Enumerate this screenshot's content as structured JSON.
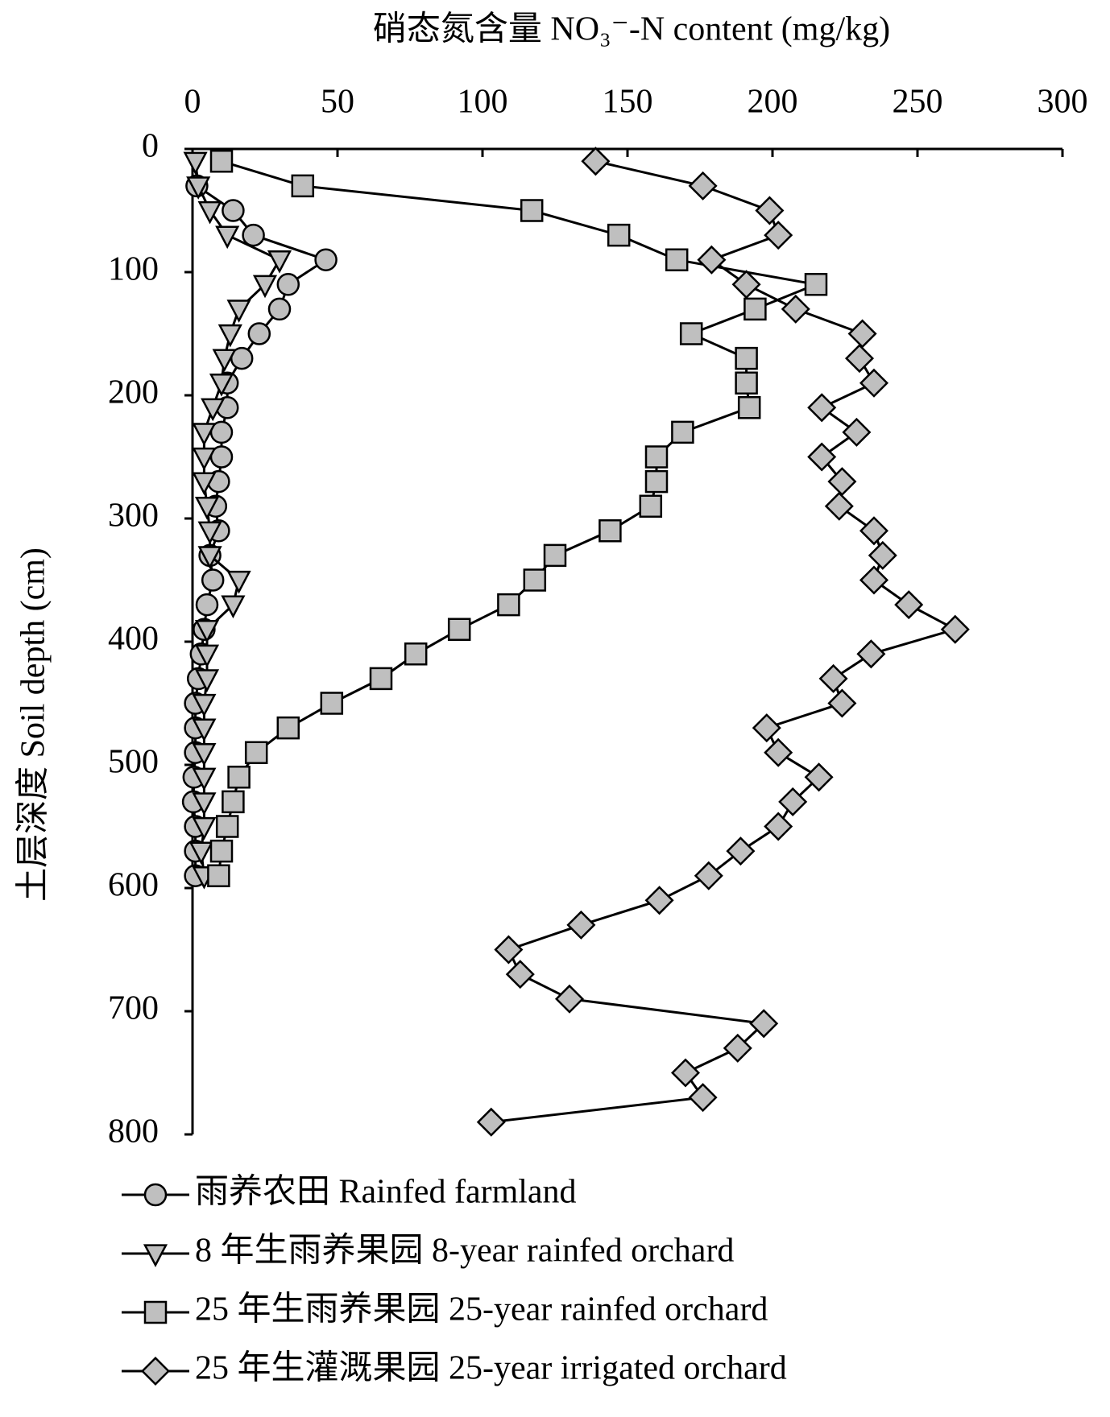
{
  "chart_data": {
    "type": "line",
    "title": "硝态氮含量 NO₃⁻-N content (mg/kg)",
    "y_label": "土层深度 Soil depth (cm)",
    "xlim": [
      0,
      300
    ],
    "xticks": [
      0,
      50,
      100,
      150,
      200,
      250,
      300
    ],
    "ylim": [
      0,
      800
    ],
    "yticks": [
      0,
      100,
      200,
      300,
      400,
      500,
      600,
      700,
      800
    ],
    "y_reversed": true,
    "x_axis_position": "top",
    "series": [
      {
        "name": "雨养农田 Rainfed farmland",
        "marker": "circle",
        "color": "#bfbfbf",
        "depth": [
          30,
          50,
          70,
          90,
          110,
          130,
          150,
          170,
          190,
          210,
          230,
          250,
          270,
          290,
          310,
          330,
          350,
          370,
          390,
          410,
          430,
          450,
          470,
          490,
          510,
          530,
          550,
          570,
          590
        ],
        "values": [
          1.5,
          14,
          21,
          46,
          33,
          30,
          23,
          17,
          12,
          12,
          10,
          10,
          9,
          8,
          9,
          6,
          7,
          5,
          4,
          3,
          2,
          1,
          1,
          1,
          0.5,
          0.3,
          1,
          1,
          1
        ]
      },
      {
        "name": "8 年生雨养果园 8-year rainfed orchard",
        "marker": "triangle-down",
        "color": "#bfbfbf",
        "depth": [
          10,
          30,
          50,
          70,
          90,
          110,
          130,
          150,
          170,
          190,
          210,
          230,
          250,
          270,
          290,
          310,
          330,
          350,
          370,
          390,
          410,
          430,
          450,
          470,
          490,
          510,
          530,
          550,
          570,
          590
        ],
        "values": [
          1,
          2,
          6,
          12,
          30,
          25,
          16,
          13,
          11,
          10,
          7,
          4,
          4,
          4,
          5,
          6,
          6,
          16,
          14,
          5,
          5,
          5,
          4,
          4,
          4,
          4,
          4,
          4,
          3,
          4
        ]
      },
      {
        "name": "25 年生雨养果园 25-year rainfed orchard",
        "marker": "square",
        "color": "#bfbfbf",
        "depth": [
          10,
          30,
          50,
          70,
          90,
          110,
          130,
          150,
          170,
          190,
          210,
          230,
          250,
          270,
          290,
          310,
          330,
          350,
          370,
          390,
          410,
          430,
          450,
          470,
          490,
          510,
          530,
          550,
          570,
          590
        ],
        "values": [
          10,
          38,
          117,
          147,
          167,
          215,
          194,
          172,
          191,
          191,
          192,
          169,
          160,
          160,
          158,
          144,
          125,
          118,
          109,
          92,
          77,
          65,
          48,
          33,
          22,
          16,
          14,
          12,
          10,
          9
        ]
      },
      {
        "name": "25 年生灌溉果园 25-year irrigated orchard",
        "marker": "diamond",
        "color": "#bfbfbf",
        "depth": [
          10,
          30,
          50,
          70,
          90,
          110,
          130,
          150,
          170,
          190,
          210,
          230,
          250,
          270,
          290,
          310,
          330,
          350,
          370,
          390,
          410,
          430,
          450,
          470,
          490,
          510,
          530,
          550,
          570,
          590,
          610,
          630,
          650,
          670,
          690,
          710,
          730,
          750,
          770,
          790
        ],
        "values": [
          139,
          176,
          199,
          202,
          179,
          191,
          208,
          231,
          230,
          235,
          217,
          229,
          217,
          224,
          223,
          235,
          238,
          235,
          247,
          263,
          234,
          221,
          224,
          198,
          202,
          216,
          207,
          202,
          189,
          178,
          161,
          134,
          109,
          113,
          130,
          197,
          188,
          170,
          176,
          103
        ]
      }
    ]
  }
}
